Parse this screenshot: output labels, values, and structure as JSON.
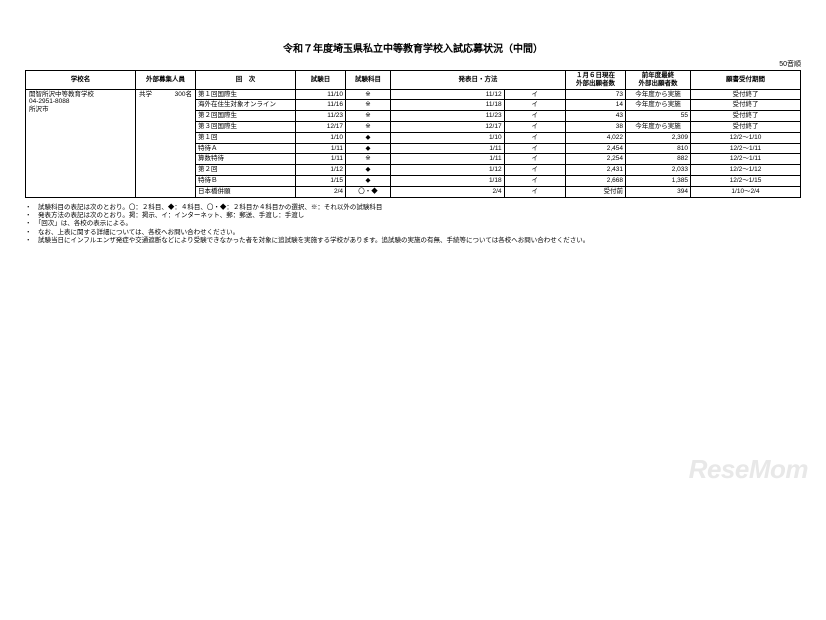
{
  "title": "令和７年度埼玉県私立中等教育学校入試応募状況（中間）",
  "unit_label": "50音順",
  "watermark": "ReseMom",
  "headers": {
    "school": "学校名",
    "recruit": "外部募集人員",
    "round": "回　次",
    "exam_date": "試験日",
    "subjects": "試験科目",
    "announce": "発表日・方法",
    "applicants_current": "１月６日現在\n外部出願者数",
    "applicants_prev": "前年度最終\n外部出願者数",
    "period": "願書受付期間"
  },
  "school": {
    "name": "開智所沢中等教育学校",
    "tel": "04-2951-8088",
    "city": "所沢市",
    "coed": "共学",
    "capacity": "300名"
  },
  "rounds": [
    {
      "name": "第１回国際生",
      "exam": "11/10",
      "subj": "※",
      "ann_date": "11/12",
      "ann_method": "イ",
      "curr": "73",
      "prev": "今年度から実施",
      "period": "受付終了"
    },
    {
      "name": "海外在住生対象オンライン",
      "exam": "11/16",
      "subj": "※",
      "ann_date": "11/18",
      "ann_method": "イ",
      "curr": "14",
      "prev": "今年度から実施",
      "period": "受付終了"
    },
    {
      "name": "第２回国際生",
      "exam": "11/23",
      "subj": "※",
      "ann_date": "11/23",
      "ann_method": "イ",
      "curr": "43",
      "prev": "55",
      "period": "受付終了"
    },
    {
      "name": "第３回国際生",
      "exam": "12/17",
      "subj": "※",
      "ann_date": "12/17",
      "ann_method": "イ",
      "curr": "38",
      "prev": "今年度から実施",
      "period": "受付終了"
    },
    {
      "name": "第１回",
      "exam": "1/10",
      "subj": "◆",
      "ann_date": "1/10",
      "ann_method": "イ",
      "curr": "4,022",
      "prev": "2,309",
      "period": "12/2～1/10"
    },
    {
      "name": "特待Ａ",
      "exam": "1/11",
      "subj": "◆",
      "ann_date": "1/11",
      "ann_method": "イ",
      "curr": "2,454",
      "prev": "810",
      "period": "12/2～1/11"
    },
    {
      "name": "算数特待",
      "exam": "1/11",
      "subj": "※",
      "ann_date": "1/11",
      "ann_method": "イ",
      "curr": "2,254",
      "prev": "882",
      "period": "12/2～1/11"
    },
    {
      "name": "第２回",
      "exam": "1/12",
      "subj": "◆",
      "ann_date": "1/12",
      "ann_method": "イ",
      "curr": "2,431",
      "prev": "2,033",
      "period": "12/2～1/12"
    },
    {
      "name": "特待Ｂ",
      "exam": "1/15",
      "subj": "◆",
      "ann_date": "1/18",
      "ann_method": "イ",
      "curr": "2,668",
      "prev": "1,385",
      "period": "12/2～1/15"
    },
    {
      "name": "日本橋併願",
      "exam": "2/4",
      "subj": "〇・◆",
      "ann_date": "2/4",
      "ann_method": "イ",
      "curr": "受付前",
      "prev": "394",
      "period": "1/10～2/4"
    }
  ],
  "notes": [
    "・　試験科目の表記は次のとおり。〇：２科目、◆：４科目、〇・◆：２科目か４科目かの選択、※：それ以外の試験科目",
    "・　発表方法の表記は次のとおり。掲：掲示、イ：インターネット、郵：郵送、手渡し：手渡し",
    "・　「回次」は、各校の表示による。",
    "・　なお、上表に関する詳細については、各校へお問い合わせください。",
    "・　試験当日にインフルエンザ発症や交通遮断などにより受験できなかった者を対象に追試験を実施する学校があります。追試験の実施の有無、手続等については各校へお問い合わせください。"
  ]
}
